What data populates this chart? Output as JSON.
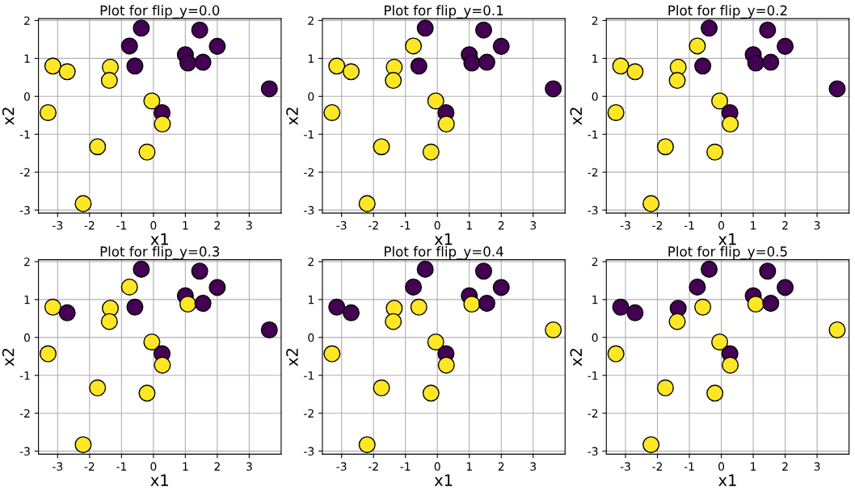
{
  "chart_data": [
    {
      "type": "scatter",
      "title": "Plot for flip_y=0.0",
      "xlabel": "x1",
      "ylabel": "x2",
      "xlim": [
        -3.6,
        4.0
      ],
      "ylim": [
        -3.08,
        2.05
      ],
      "xticks": [
        -3,
        -2,
        -1,
        0,
        1,
        2,
        3
      ],
      "yticks": [
        -3,
        -2,
        -1,
        0,
        1,
        2
      ],
      "grid": true,
      "marker": "circle",
      "series": [
        {
          "x": [
            -3.15,
            -2.7,
            -1.35,
            -1.38,
            -0.58,
            -0.75,
            -0.38,
            1.45,
            2.0,
            1.0,
            1.08,
            1.55,
            3.63,
            -0.05,
            0.27,
            0.28,
            -3.3,
            -1.75,
            -0.2,
            -2.2
          ],
          "values": [
            0.8,
            0.65,
            0.77,
            0.42,
            0.8,
            1.33,
            1.8,
            1.75,
            1.32,
            1.1,
            0.88,
            0.9,
            0.2,
            -0.12,
            -0.43,
            -0.73,
            -0.43,
            -1.33,
            -1.47,
            -2.83
          ],
          "colors": [
            "#fde725",
            "#fde725",
            "#fde725",
            "#fde725",
            "#440154",
            "#440154",
            "#440154",
            "#440154",
            "#440154",
            "#440154",
            "#440154",
            "#440154",
            "#440154",
            "#fde725",
            "#440154",
            "#fde725",
            "#fde725",
            "#fde725",
            "#fde725",
            "#fde725"
          ]
        }
      ]
    },
    {
      "type": "scatter",
      "title": "Plot for flip_y=0.1",
      "xlabel": "x1",
      "ylabel": "x2",
      "xlim": [
        -3.6,
        4.0
      ],
      "ylim": [
        -3.08,
        2.05
      ],
      "xticks": [
        -3,
        -2,
        -1,
        0,
        1,
        2,
        3
      ],
      "yticks": [
        -3,
        -2,
        -1,
        0,
        1,
        2
      ],
      "grid": true,
      "marker": "circle",
      "series": [
        {
          "x": [
            -3.15,
            -2.7,
            -1.35,
            -1.38,
            -0.58,
            -0.75,
            -0.38,
            1.45,
            2.0,
            1.0,
            1.08,
            1.55,
            3.63,
            -0.05,
            0.27,
            0.28,
            -3.3,
            -1.75,
            -0.2,
            -2.2
          ],
          "values": [
            0.8,
            0.65,
            0.77,
            0.42,
            0.8,
            1.33,
            1.8,
            1.75,
            1.32,
            1.1,
            0.88,
            0.9,
            0.2,
            -0.12,
            -0.43,
            -0.73,
            -0.43,
            -1.33,
            -1.47,
            -2.83
          ],
          "colors": [
            "#fde725",
            "#fde725",
            "#fde725",
            "#fde725",
            "#440154",
            "#fde725",
            "#440154",
            "#440154",
            "#440154",
            "#440154",
            "#440154",
            "#440154",
            "#440154",
            "#fde725",
            "#440154",
            "#fde725",
            "#fde725",
            "#fde725",
            "#fde725",
            "#fde725"
          ]
        }
      ]
    },
    {
      "type": "scatter",
      "title": "Plot for flip_y=0.2",
      "xlabel": "x1",
      "ylabel": "x2",
      "xlim": [
        -3.6,
        4.0
      ],
      "ylim": [
        -3.08,
        2.05
      ],
      "xticks": [
        -3,
        -2,
        -1,
        0,
        1,
        2,
        3
      ],
      "yticks": [
        -3,
        -2,
        -1,
        0,
        1,
        2
      ],
      "grid": true,
      "marker": "circle",
      "series": [
        {
          "x": [
            -3.15,
            -2.7,
            -1.35,
            -1.38,
            -0.58,
            -0.75,
            -0.38,
            1.45,
            2.0,
            1.0,
            1.08,
            1.55,
            3.63,
            -0.05,
            0.27,
            0.28,
            -3.3,
            -1.75,
            -0.2,
            -2.2
          ],
          "values": [
            0.8,
            0.65,
            0.77,
            0.42,
            0.8,
            1.33,
            1.8,
            1.75,
            1.32,
            1.1,
            0.88,
            0.9,
            0.2,
            -0.12,
            -0.43,
            -0.73,
            -0.43,
            -1.33,
            -1.47,
            -2.83
          ],
          "colors": [
            "#fde725",
            "#fde725",
            "#fde725",
            "#fde725",
            "#440154",
            "#fde725",
            "#440154",
            "#440154",
            "#440154",
            "#440154",
            "#440154",
            "#440154",
            "#440154",
            "#fde725",
            "#440154",
            "#fde725",
            "#fde725",
            "#fde725",
            "#fde725",
            "#fde725"
          ]
        }
      ]
    },
    {
      "type": "scatter",
      "title": "Plot for flip_y=0.3",
      "xlabel": "x1",
      "ylabel": "x2",
      "xlim": [
        -3.6,
        4.0
      ],
      "ylim": [
        -3.08,
        2.05
      ],
      "xticks": [
        -3,
        -2,
        -1,
        0,
        1,
        2,
        3
      ],
      "yticks": [
        -3,
        -2,
        -1,
        0,
        1,
        2
      ],
      "grid": true,
      "marker": "circle",
      "series": [
        {
          "x": [
            -3.15,
            -2.7,
            -1.35,
            -1.38,
            -0.58,
            -0.75,
            -0.38,
            1.45,
            2.0,
            1.0,
            1.08,
            1.55,
            3.63,
            -0.05,
            0.27,
            0.28,
            -3.3,
            -1.75,
            -0.2,
            -2.2
          ],
          "values": [
            0.8,
            0.65,
            0.77,
            0.42,
            0.8,
            1.33,
            1.8,
            1.75,
            1.32,
            1.1,
            0.88,
            0.9,
            0.2,
            -0.12,
            -0.43,
            -0.73,
            -0.43,
            -1.33,
            -1.47,
            -2.83
          ],
          "colors": [
            "#fde725",
            "#440154",
            "#fde725",
            "#fde725",
            "#440154",
            "#fde725",
            "#440154",
            "#440154",
            "#440154",
            "#440154",
            "#fde725",
            "#440154",
            "#440154",
            "#fde725",
            "#440154",
            "#fde725",
            "#fde725",
            "#fde725",
            "#fde725",
            "#fde725"
          ]
        }
      ]
    },
    {
      "type": "scatter",
      "title": "Plot for flip_y=0.4",
      "xlabel": "x1",
      "ylabel": "x2",
      "xlim": [
        -3.6,
        4.0
      ],
      "ylim": [
        -3.08,
        2.05
      ],
      "xticks": [
        -3,
        -2,
        -1,
        0,
        1,
        2,
        3
      ],
      "yticks": [
        -3,
        -2,
        -1,
        0,
        1,
        2
      ],
      "grid": true,
      "marker": "circle",
      "series": [
        {
          "x": [
            -3.15,
            -2.7,
            -1.35,
            -1.38,
            -0.58,
            -0.75,
            -0.38,
            1.45,
            2.0,
            1.0,
            1.08,
            1.55,
            3.63,
            -0.05,
            0.27,
            0.28,
            -3.3,
            -1.75,
            -0.2,
            -2.2
          ],
          "values": [
            0.8,
            0.65,
            0.77,
            0.42,
            0.8,
            1.33,
            1.8,
            1.75,
            1.32,
            1.1,
            0.88,
            0.9,
            0.2,
            -0.12,
            -0.43,
            -0.73,
            -0.43,
            -1.33,
            -1.47,
            -2.83
          ],
          "colors": [
            "#440154",
            "#440154",
            "#fde725",
            "#fde725",
            "#fde725",
            "#440154",
            "#440154",
            "#440154",
            "#440154",
            "#440154",
            "#fde725",
            "#440154",
            "#fde725",
            "#fde725",
            "#440154",
            "#fde725",
            "#fde725",
            "#fde725",
            "#fde725",
            "#fde725"
          ]
        }
      ]
    },
    {
      "type": "scatter",
      "title": "Plot for flip_y=0.5",
      "xlabel": "x1",
      "ylabel": "x2",
      "xlim": [
        -3.6,
        4.0
      ],
      "ylim": [
        -3.08,
        2.05
      ],
      "xticks": [
        -3,
        -2,
        -1,
        0,
        1,
        2,
        3
      ],
      "yticks": [
        -3,
        -2,
        -1,
        0,
        1,
        2
      ],
      "grid": true,
      "marker": "circle",
      "series": [
        {
          "x": [
            -3.15,
            -2.7,
            -1.35,
            -1.38,
            -0.58,
            -0.75,
            -0.38,
            1.45,
            2.0,
            1.0,
            1.08,
            1.55,
            3.63,
            -0.05,
            0.27,
            0.28,
            -3.3,
            -1.75,
            -0.2,
            -2.2
          ],
          "values": [
            0.8,
            0.65,
            0.77,
            0.42,
            0.8,
            1.33,
            1.8,
            1.75,
            1.32,
            1.1,
            0.88,
            0.9,
            0.2,
            -0.12,
            -0.43,
            -0.73,
            -0.43,
            -1.33,
            -1.47,
            -2.83
          ],
          "colors": [
            "#440154",
            "#440154",
            "#440154",
            "#fde725",
            "#fde725",
            "#440154",
            "#440154",
            "#440154",
            "#440154",
            "#440154",
            "#fde725",
            "#440154",
            "#fde725",
            "#fde725",
            "#440154",
            "#fde725",
            "#fde725",
            "#fde725",
            "#fde725",
            "#fde725"
          ]
        }
      ]
    }
  ]
}
